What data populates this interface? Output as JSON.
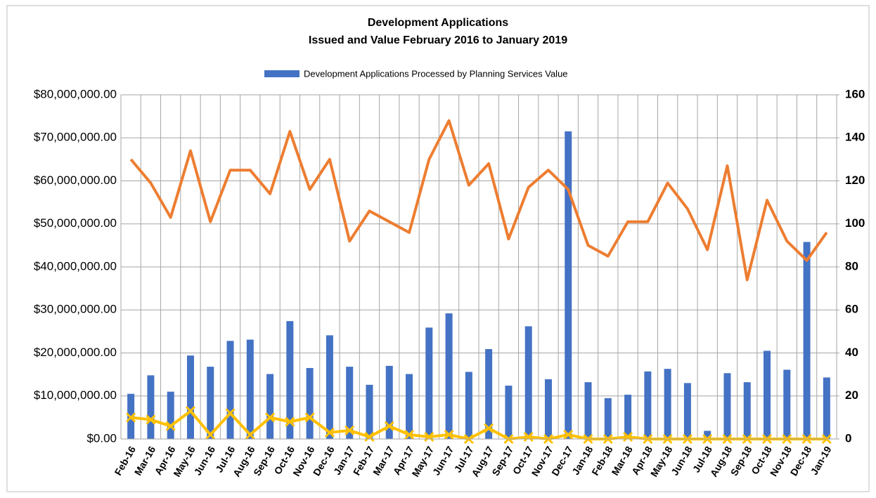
{
  "chart_data": {
    "type": "combo",
    "title": "Development Applications",
    "subtitle": "Issued and  Value February 2016 to January 2019",
    "categories": [
      "Feb-16",
      "Mar-16",
      "Apr-16",
      "May-16",
      "Jun-16",
      "Jul-16",
      "Aug-16",
      "Sep-16",
      "Oct-16",
      "Nov-16",
      "Dec-16",
      "Jan-17",
      "Feb-17",
      "Mar-17",
      "Apr-17",
      "May-17",
      "Jun-17",
      "Jul-17",
      "Aug-17",
      "Sep-17",
      "Oct-17",
      "Nov-17",
      "Dec-17",
      "Jan-18",
      "Feb-18",
      "Mar-18",
      "Apr-18",
      "May-18",
      "Jun-18",
      "Jul-18",
      "Aug-18",
      "Sep-18",
      "Oct-18",
      "Nov-18",
      "Dec-18",
      "Jan-19"
    ],
    "series": [
      {
        "name": "Development Applications Processed by Planning Services Value",
        "type": "bar",
        "color": "#4472c4",
        "values": [
          10500000,
          14800000,
          11000000,
          19400000,
          16800000,
          22800000,
          23100000,
          15100000,
          27400000,
          16500000,
          24100000,
          16800000,
          12600000,
          17000000,
          15100000,
          25900000,
          29200000,
          15600000,
          20900000,
          12400000,
          26200000,
          13900000,
          71500000,
          13200000,
          9500000,
          10300000,
          15700000,
          16300000,
          13000000,
          1900000,
          15300000,
          13200000,
          20500000,
          16100000,
          45800000,
          14300000
        ]
      },
      {
        "type": "line",
        "axis": "y2",
        "color": "#ed7d31",
        "values": [
          130,
          119,
          103,
          134,
          101,
          125,
          125,
          114,
          143,
          116,
          130,
          92,
          106,
          101,
          96,
          130,
          148,
          118,
          128,
          93,
          117,
          125,
          116,
          90,
          85,
          101,
          101,
          119,
          107,
          88,
          127,
          74,
          111,
          92,
          83,
          96
        ]
      },
      {
        "type": "line",
        "axis": "y2",
        "color": "#ffc000",
        "marker": "x",
        "values": [
          10,
          9,
          6,
          13,
          2,
          12,
          2,
          10,
          8,
          10,
          3,
          4,
          1,
          6,
          2,
          1,
          2,
          0,
          5,
          0,
          1,
          0,
          2,
          0,
          0,
          1,
          0,
          0,
          0,
          0,
          0,
          0,
          0,
          0,
          0,
          0
        ]
      }
    ],
    "ylim": [
      0,
      80000000
    ],
    "yticks": [
      {
        "value": 0,
        "label": "$0.00"
      },
      {
        "value": 10000000,
        "label": "$10,000,000.00"
      },
      {
        "value": 20000000,
        "label": "$20,000,000.00"
      },
      {
        "value": 30000000,
        "label": "$30,000,000.00"
      },
      {
        "value": 40000000,
        "label": "$40,000,000.00"
      },
      {
        "value": 50000000,
        "label": "$50,000,000.00"
      },
      {
        "value": 60000000,
        "label": "$60,000,000.00"
      },
      {
        "value": 70000000,
        "label": "$70,000,000.00"
      },
      {
        "value": 80000000,
        "label": "$80,000,000.00"
      }
    ],
    "y2lim": [
      0,
      160
    ],
    "y2ticks": [
      0,
      20,
      40,
      60,
      80,
      100,
      120,
      140,
      160
    ],
    "grid": true,
    "legend": "top"
  }
}
